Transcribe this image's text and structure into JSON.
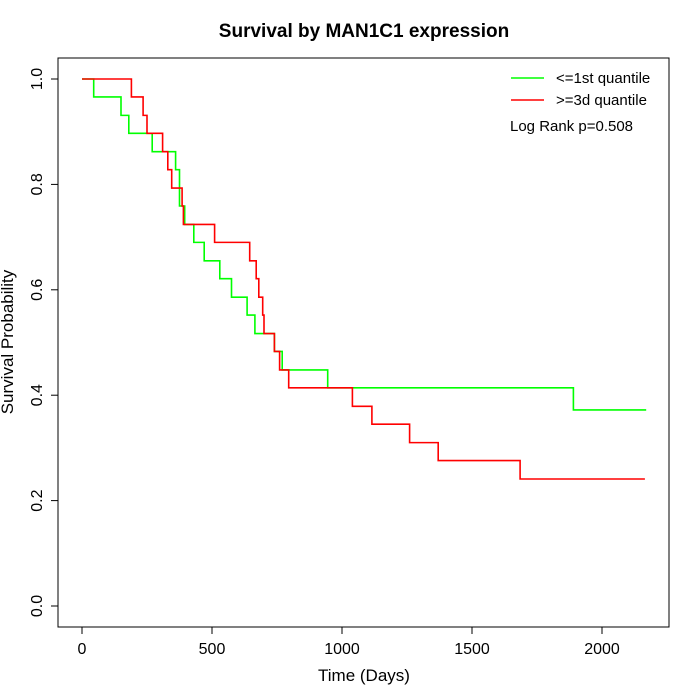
{
  "chart_data": {
    "type": "line",
    "title": "Survival by MAN1C1 expression",
    "xlabel": "Time (Days)",
    "ylabel": "Survival Probability",
    "xlim": [
      0,
      2250
    ],
    "ylim": [
      0,
      1
    ],
    "x_ticks": [
      0,
      500,
      1000,
      1500,
      2000
    ],
    "y_ticks": [
      0.0,
      0.2,
      0.4,
      0.6,
      0.8,
      1.0
    ],
    "x_tick_labels": [
      "0",
      "500",
      "1000",
      "1500",
      "2000"
    ],
    "y_tick_labels": [
      "0.0",
      "0.2",
      "0.4",
      "0.6",
      "0.8",
      "1.0"
    ],
    "legend_position": "top-right",
    "annotation": "Log Rank p=0.508",
    "grid": false,
    "step": true,
    "series": [
      {
        "name": "<=1st quantile",
        "color": "#00ff00",
        "points": [
          [
            0,
            1.0
          ],
          [
            45,
            0.966
          ],
          [
            150,
            0.931
          ],
          [
            180,
            0.897
          ],
          [
            270,
            0.862
          ],
          [
            360,
            0.828
          ],
          [
            375,
            0.759
          ],
          [
            395,
            0.724
          ],
          [
            430,
            0.69
          ],
          [
            470,
            0.655
          ],
          [
            530,
            0.621
          ],
          [
            575,
            0.586
          ],
          [
            635,
            0.552
          ],
          [
            665,
            0.517
          ],
          [
            740,
            0.483
          ],
          [
            770,
            0.448
          ],
          [
            945,
            0.414
          ],
          [
            1890,
            0.372
          ],
          [
            2170,
            0.372
          ]
        ]
      },
      {
        "name": ">=3d quantile",
        "color": "#ff0000",
        "points": [
          [
            0,
            1.0
          ],
          [
            190,
            0.966
          ],
          [
            235,
            0.931
          ],
          [
            250,
            0.897
          ],
          [
            310,
            0.862
          ],
          [
            330,
            0.828
          ],
          [
            345,
            0.793
          ],
          [
            385,
            0.759
          ],
          [
            390,
            0.724
          ],
          [
            510,
            0.69
          ],
          [
            645,
            0.655
          ],
          [
            670,
            0.621
          ],
          [
            680,
            0.586
          ],
          [
            695,
            0.552
          ],
          [
            700,
            0.517
          ],
          [
            740,
            0.483
          ],
          [
            760,
            0.448
          ],
          [
            795,
            0.414
          ],
          [
            1040,
            0.379
          ],
          [
            1115,
            0.345
          ],
          [
            1260,
            0.31
          ],
          [
            1370,
            0.276
          ],
          [
            1685,
            0.241
          ],
          [
            2165,
            0.241
          ]
        ]
      }
    ]
  }
}
